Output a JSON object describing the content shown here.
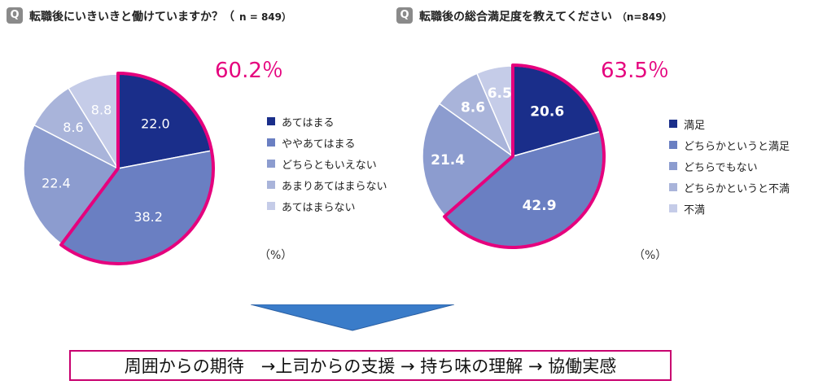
{
  "chart_data": [
    {
      "type": "pie",
      "question_badge": "Q",
      "title": "転職後にいきいきと働けていますか？（",
      "sample": "n = 849）",
      "highlight_label": "60.2％",
      "unit_label": "（%）",
      "categories": [
        "あてはまる",
        "ややあてはまる",
        "どちらともいえない",
        "あまりあてはまらない",
        "あてはまらない"
      ],
      "values": [
        22.0,
        38.2,
        22.4,
        8.6,
        8.8
      ],
      "value_labels": [
        "22.0",
        "38.2",
        "22.4",
        "8.6",
        "8.8"
      ],
      "colors": [
        "#1a2e8a",
        "#6a7fc2",
        "#8c9ccf",
        "#a9b4da",
        "#c5cce8"
      ],
      "highlight_slices": [
        0,
        1
      ],
      "highlight_color": "#e5007d"
    },
    {
      "type": "pie",
      "question_badge": "Q",
      "title": "転職後の総合満足度を教えてください",
      "sample": "（n=849）",
      "highlight_label": "63.5％",
      "unit_label": "（%）",
      "categories": [
        "満足",
        "どちらかというと満足",
        "どちらでもない",
        "どちらかというと不満",
        "不満"
      ],
      "values": [
        20.6,
        42.9,
        21.4,
        8.6,
        6.5
      ],
      "value_labels": [
        "20.6",
        "42.9",
        "21.4",
        "8.6",
        "6.5"
      ],
      "colors": [
        "#1a2e8a",
        "#6a7fc2",
        "#8c9ccf",
        "#a9b4da",
        "#c5cce8"
      ],
      "highlight_slices": [
        0,
        1
      ],
      "highlight_color": "#e5007d"
    }
  ],
  "arrow_color": "#3a7cc9",
  "conclusion": "周囲からの期待　→上司からの支援 → 持ち味の理解 → 協働実感"
}
